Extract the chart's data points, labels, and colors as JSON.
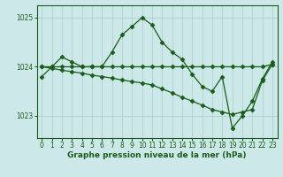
{
  "bg_color": "#cce8e8",
  "grid_color": "#aacccc",
  "line_color": "#1a5c1a",
  "xlim": [
    -0.5,
    23.5
  ],
  "ylim": [
    1022.55,
    1025.25
  ],
  "yticks": [
    1023,
    1024,
    1025
  ],
  "xticks": [
    0,
    1,
    2,
    3,
    4,
    5,
    6,
    7,
    8,
    9,
    10,
    11,
    12,
    13,
    14,
    15,
    16,
    17,
    18,
    19,
    20,
    21,
    22,
    23
  ],
  "xlabel": "Graphe pression niveau de la mer (hPa)",
  "series": [
    [
      1023.8,
      1024.0,
      1024.2,
      1024.1,
      1024.0,
      1024.0,
      1024.0,
      1024.3,
      1024.65,
      1024.82,
      1025.0,
      1024.85,
      1024.5,
      1024.3,
      1024.15,
      1023.85,
      1023.6,
      1023.5,
      1023.8,
      1022.75,
      1023.0,
      1023.3,
      1023.75,
      1024.1
    ],
    [
      1024.0,
      1024.0,
      1024.0,
      1024.0,
      1024.0,
      1024.0,
      1024.0,
      1024.0,
      1024.0,
      1024.0,
      1024.0,
      1024.0,
      1024.0,
      1024.0,
      1024.0,
      1024.0,
      1024.0,
      1024.0,
      1024.0,
      1024.0,
      1024.0,
      1024.0,
      1024.0,
      1024.05
    ],
    [
      1024.0,
      1023.97,
      1023.93,
      1023.9,
      1023.87,
      1023.83,
      1023.8,
      1023.77,
      1023.73,
      1023.7,
      1023.67,
      1023.63,
      1023.55,
      1023.47,
      1023.38,
      1023.3,
      1023.22,
      1023.13,
      1023.08,
      1023.03,
      1023.08,
      1023.13,
      1023.72,
      1024.05
    ]
  ],
  "marker": "D",
  "markersize": 2.5,
  "linewidth": 0.9,
  "xlabel_fontsize": 6.5,
  "tick_fontsize": 5.5
}
